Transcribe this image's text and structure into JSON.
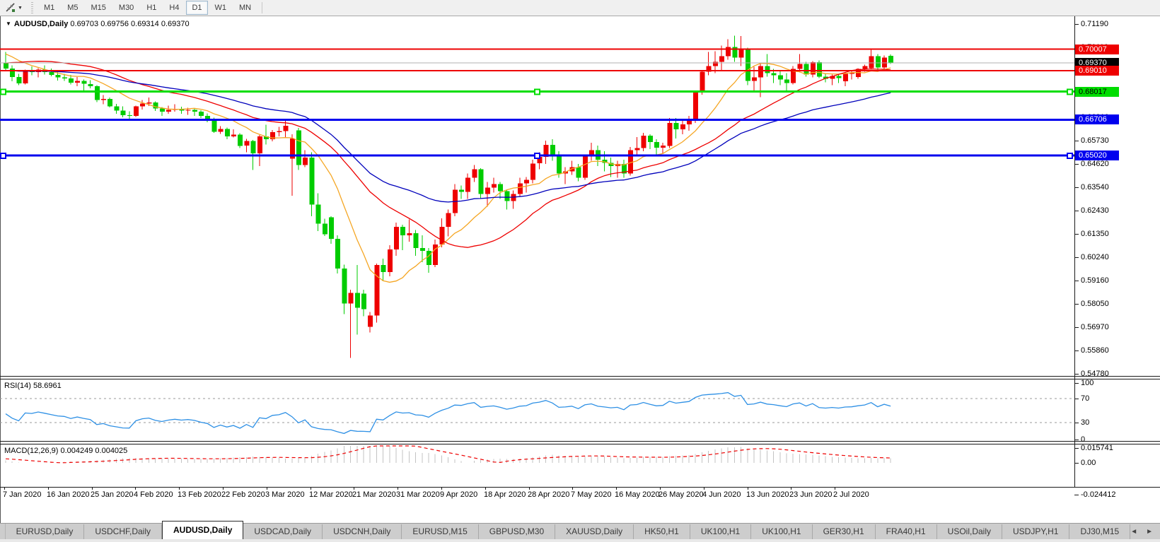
{
  "toolbar": {
    "chart_tool_icon": "crosshair-tool-icon",
    "dropdown_caret": "▼",
    "timeframes": [
      "M1",
      "M5",
      "M15",
      "M30",
      "H1",
      "H4",
      "D1",
      "W1",
      "MN"
    ],
    "active_timeframe": "D1"
  },
  "chart_window": {
    "title_caret": "▼",
    "title": "AUDUSD,Daily",
    "ohlc_text": "0.69703 0.69756 0.69314 0.69370",
    "price_axis_ticks": [
      "0.71190",
      "0.70110",
      "0.69030",
      "0.67920",
      "0.66810",
      "0.65730",
      "0.64620",
      "0.63540",
      "0.62430",
      "0.61350",
      "0.60240",
      "0.59160",
      "0.58050",
      "0.56970",
      "0.55860",
      "0.54780"
    ],
    "price_badges": [
      {
        "text": "0.70007",
        "price": 0.70007,
        "bg": "#ee0000",
        "fg": "#ffffff"
      },
      {
        "text": "0.69370",
        "price": 0.6937,
        "bg": "#000000",
        "fg": "#ffffff"
      },
      {
        "text": "0.69010",
        "price": 0.6901,
        "bg": "#ee0000",
        "fg": "#ffffff"
      },
      {
        "text": "0.68017",
        "price": 0.68017,
        "bg": "#00dd00",
        "fg": "#000000"
      },
      {
        "text": "0.66706",
        "price": 0.66706,
        "bg": "#0000ee",
        "fg": "#ffffff"
      },
      {
        "text": "0.65020",
        "price": 0.6502,
        "bg": "#0000ee",
        "fg": "#ffffff"
      }
    ]
  },
  "chart_data": {
    "type": "candlestick",
    "symbol": "AUDUSD",
    "timeframe": "Daily",
    "current_bar": {
      "open": 0.69703,
      "high": 0.69756,
      "low": 0.69314,
      "close": 0.6937
    },
    "price_axis": {
      "max": 0.7119,
      "min": 0.5478
    },
    "bull_color": "#ee0000",
    "bear_color": "#00cc00",
    "bid_line": {
      "price": 0.6937,
      "color": "#b0b0b0"
    },
    "hlines": [
      {
        "price": 0.70007,
        "color": "#ee0000",
        "w": 2,
        "selected": false
      },
      {
        "price": 0.6901,
        "color": "#ee0000",
        "w": 2,
        "selected": false
      },
      {
        "price": 0.68017,
        "color": "#00dd00",
        "w": 3,
        "selected": true
      },
      {
        "price": 0.66706,
        "color": "#0000ee",
        "w": 3,
        "selected": false
      },
      {
        "price": 0.6502,
        "color": "#0000ee",
        "w": 3,
        "selected": true
      }
    ],
    "moving_averages": [
      {
        "period": 10,
        "method": "sma",
        "color": "#f5a623"
      },
      {
        "period": 25,
        "method": "sma",
        "color": "#ee0000"
      },
      {
        "period": 45,
        "method": "ema",
        "color": "#0000bb"
      }
    ],
    "pre_closes": [
      6740,
      6755,
      6770,
      6748,
      6732,
      6760,
      6775,
      6790,
      6784,
      6800,
      6812,
      6796,
      6780,
      6770,
      6755,
      6745,
      6762,
      6840,
      6852,
      6860,
      6885,
      6892,
      6900,
      6895,
      6880,
      6866,
      6852,
      6856,
      6870,
      6882,
      6846,
      6832,
      6820,
      6812,
      6800,
      6792,
      6806,
      6820,
      6836,
      6850,
      6880,
      6900,
      6920,
      6936,
      6950,
      6962,
      6946,
      6930,
      6940,
      6956,
      6980,
      7000,
      7012,
      7021,
      7006,
      6996,
      6986,
      6962,
      6950,
      6940
    ],
    "candles": [
      [
        6935,
        6988,
        6902,
        6910
      ],
      [
        6910,
        6925,
        6850,
        6870
      ],
      [
        6870,
        6885,
        6832,
        6840
      ],
      [
        6840,
        6905,
        6836,
        6898
      ],
      [
        6898,
        6920,
        6878,
        6893
      ],
      [
        6893,
        6912,
        6868,
        6905
      ],
      [
        6905,
        6925,
        6882,
        6893
      ],
      [
        6893,
        6910,
        6873,
        6880
      ],
      [
        6880,
        6900,
        6854,
        6868
      ],
      [
        6868,
        6886,
        6852,
        6863
      ],
      [
        6863,
        6880,
        6836,
        6843
      ],
      [
        6843,
        6870,
        6828,
        6852
      ],
      [
        6852,
        6858,
        6808,
        6838
      ],
      [
        6838,
        6855,
        6818,
        6827
      ],
      [
        6827,
        6833,
        6753,
        6762
      ],
      [
        6762,
        6785,
        6742,
        6768
      ],
      [
        6768,
        6774,
        6728,
        6733
      ],
      [
        6733,
        6745,
        6698,
        6713
      ],
      [
        6713,
        6733,
        6682,
        6691
      ],
      [
        6691,
        6710,
        6668,
        6688
      ],
      [
        6688,
        6736,
        6683,
        6732
      ],
      [
        6732,
        6762,
        6718,
        6746
      ],
      [
        6746,
        6775,
        6734,
        6751
      ],
      [
        6751,
        6756,
        6712,
        6723
      ],
      [
        6723,
        6730,
        6688,
        6708
      ],
      [
        6708,
        6736,
        6698,
        6717
      ],
      [
        6717,
        6742,
        6708,
        6722
      ],
      [
        6722,
        6731,
        6698,
        6713
      ],
      [
        6713,
        6726,
        6693,
        6716
      ],
      [
        6716,
        6721,
        6688,
        6708
      ],
      [
        6708,
        6714,
        6678,
        6688
      ],
      [
        6688,
        6700,
        6658,
        6673
      ],
      [
        6673,
        6679,
        6608,
        6613
      ],
      [
        6613,
        6640,
        6603,
        6626
      ],
      [
        6626,
        6634,
        6578,
        6592
      ],
      [
        6592,
        6625,
        6587,
        6601
      ],
      [
        6601,
        6606,
        6538,
        6548
      ],
      [
        6548,
        6580,
        6518,
        6571
      ],
      [
        6571,
        6576,
        6434,
        6512
      ],
      [
        6512,
        6598,
        6452,
        6592
      ],
      [
        6592,
        6646,
        6553,
        6578
      ],
      [
        6578,
        6622,
        6568,
        6611
      ],
      [
        6611,
        6636,
        6592,
        6617
      ],
      [
        6617,
        6672,
        6588,
        6641
      ],
      [
        6488,
        6602,
        6313,
        6582
      ],
      [
        6620,
        6632,
        6435,
        6458
      ],
      [
        6458,
        6528,
        6448,
        6492
      ],
      [
        6492,
        6518,
        6218,
        6272
      ],
      [
        6272,
        6325,
        6148,
        6182
      ],
      [
        6182,
        6205,
        6125,
        6132
      ],
      [
        6212,
        6218,
        6088,
        6112
      ],
      [
        6112,
        6128,
        5948,
        5972
      ],
      [
        5972,
        5990,
        5758,
        5808
      ],
      [
        5808,
        5872,
        5552,
        5858
      ],
      [
        5858,
        5988,
        5662,
        5788
      ],
      [
        5855,
        5872,
        5748,
        5782
      ],
      [
        5698,
        5768,
        5672,
        5752
      ],
      [
        5752,
        5995,
        5718,
        5988
      ],
      [
        5988,
        6018,
        5912,
        5955
      ],
      [
        5955,
        6082,
        5935,
        6062
      ],
      [
        6062,
        6188,
        6032,
        6168
      ],
      [
        6168,
        6178,
        6058,
        6128
      ],
      [
        6128,
        6202,
        6098,
        6138
      ],
      [
        6138,
        6152,
        6032,
        6068
      ],
      [
        6068,
        6128,
        6002,
        6055
      ],
      [
        6055,
        6068,
        5952,
        5988
      ],
      [
        5988,
        6108,
        5978,
        6085
      ],
      [
        6085,
        6208,
        6072,
        6168
      ],
      [
        6168,
        6248,
        6122,
        6232
      ],
      [
        6232,
        6368,
        6218,
        6342
      ],
      [
        6342,
        6362,
        6298,
        6332
      ],
      [
        6332,
        6418,
        6298,
        6398
      ],
      [
        6398,
        6458,
        6378,
        6438
      ],
      [
        6438,
        6442,
        6298,
        6322
      ],
      [
        6322,
        6378,
        6262,
        6352
      ],
      [
        6352,
        6398,
        6328,
        6368
      ],
      [
        6368,
        6378,
        6298,
        6335
      ],
      [
        6335,
        6342,
        6248,
        6288
      ],
      [
        6288,
        6338,
        6252,
        6322
      ],
      [
        6322,
        6398,
        6308,
        6372
      ],
      [
        6372,
        6402,
        6328,
        6388
      ],
      [
        6388,
        6482,
        6372,
        6465
      ],
      [
        6465,
        6518,
        6438,
        6495
      ],
      [
        6495,
        6572,
        6462,
        6552
      ],
      [
        6552,
        6578,
        6478,
        6508
      ],
      [
        6508,
        6522,
        6398,
        6418
      ],
      [
        6418,
        6448,
        6368,
        6428
      ],
      [
        6428,
        6478,
        6412,
        6448
      ],
      [
        6448,
        6462,
        6382,
        6398
      ],
      [
        6398,
        6508,
        6388,
        6498
      ],
      [
        6498,
        6562,
        6478,
        6528
      ],
      [
        6528,
        6548,
        6452,
        6482
      ],
      [
        6482,
        6522,
        6428,
        6468
      ],
      [
        6468,
        6492,
        6402,
        6452
      ],
      [
        6452,
        6478,
        6398,
        6462
      ],
      [
        6462,
        6482,
        6398,
        6418
      ],
      [
        6418,
        6542,
        6408,
        6528
      ],
      [
        6528,
        6588,
        6508,
        6538
      ],
      [
        6538,
        6608,
        6522,
        6595
      ],
      [
        6595,
        6602,
        6532,
        6565
      ],
      [
        6565,
        6578,
        6502,
        6538
      ],
      [
        6538,
        6562,
        6512,
        6548
      ],
      [
        6548,
        6678,
        6538,
        6655
      ],
      [
        6655,
        6678,
        6582,
        6625
      ],
      [
        6625,
        6668,
        6602,
        6648
      ],
      [
        6648,
        6688,
        6618,
        6668
      ],
      [
        6668,
        6808,
        6655,
        6798
      ],
      [
        6798,
        6902,
        6788,
        6895
      ],
      [
        6895,
        6988,
        6878,
        6922
      ],
      [
        6922,
        6992,
        6888,
        6942
      ],
      [
        6942,
        7018,
        6902,
        6968
      ],
      [
        6968,
        7048,
        6952,
        7012
      ],
      [
        7012,
        7065,
        6942,
        6962
      ],
      [
        6962,
        7062,
        6922,
        7002
      ],
      [
        7002,
        7008,
        6832,
        6852
      ],
      [
        6852,
        6918,
        6802,
        6868
      ],
      [
        6868,
        6938,
        6776,
        6922
      ],
      [
        6922,
        6978,
        6872,
        6888
      ],
      [
        6888,
        6908,
        6842,
        6878
      ],
      [
        6878,
        6898,
        6832,
        6858
      ],
      [
        6858,
        6888,
        6802,
        6842
      ],
      [
        6842,
        6922,
        6836,
        6908
      ],
      [
        6908,
        6978,
        6892,
        6932
      ],
      [
        6932,
        6942,
        6872,
        6882
      ],
      [
        6882,
        6945,
        6868,
        6940
      ],
      [
        6940,
        6948,
        6865,
        6872
      ],
      [
        6872,
        6888,
        6846,
        6862
      ],
      [
        6862,
        6882,
        6832,
        6876
      ],
      [
        6876,
        6884,
        6842,
        6866
      ],
      [
        6850,
        6892,
        6828,
        6886
      ],
      [
        6886,
        6898,
        6858,
        6890
      ],
      [
        6870,
        6912,
        6862,
        6908
      ],
      [
        6908,
        6928,
        6896,
        6922
      ],
      [
        6912,
        6998,
        6906,
        6968
      ],
      [
        6968,
        6978,
        6902,
        6915
      ],
      [
        6915,
        6972,
        6908,
        6962
      ],
      [
        6970,
        6976,
        6931,
        6937
      ]
    ],
    "date_labels": [
      "7 Jan 2020",
      "16 Jan 2020",
      "25 Jan 2020",
      "4 Feb 2020",
      "13 Feb 2020",
      "22 Feb 2020",
      "3 Mar 2020",
      "12 Mar 2020",
      "21 Mar 2020",
      "31 Mar 2020",
      "9 Apr 2020",
      "18 Apr 2020",
      "28 Apr 2020",
      "7 May 2020",
      "16 May 2020",
      "26 May 2020",
      "4 Jun 2020",
      "13 Jun 2020",
      "23 Jun 2020",
      "2 Jul 2020"
    ]
  },
  "rsi": {
    "label": "RSI(14) 58.6961",
    "period": 14,
    "current": 58.6961,
    "color": "#2e90e5",
    "levels": [
      70,
      30
    ],
    "axis_labels": [
      "100",
      "70",
      "30",
      "0"
    ],
    "max": 100,
    "min": 0
  },
  "macd": {
    "label": "MACD(12,26,9) 0.004249 0.004025",
    "fast": 12,
    "slow": 26,
    "signal": 9,
    "current_macd": 0.004249,
    "current_signal": 0.004025,
    "hist_color": "#c3c3c3",
    "signal_color": "#ee0000",
    "axis_max_label": "0.015741",
    "axis_zero_label": "0.00",
    "axis_min_label": "-0.024412",
    "max": 0.015741,
    "min": -0.024412
  },
  "tabs": {
    "items": [
      "EURUSD,Daily",
      "USDCHF,Daily",
      "AUDUSD,Daily",
      "USDCAD,Daily",
      "USDCNH,Daily",
      "EURUSD,M15",
      "GBPUSD,M30",
      "XAUUSD,Daily",
      "HK50,H1",
      "UK100,H1",
      "UK100,H1",
      "GER30,H1",
      "FRA40,H1",
      "USOil,Daily",
      "USDJPY,H1",
      "DJ30,M15"
    ],
    "active_index": 2,
    "scroll_left": "◄",
    "scroll_right": "►"
  }
}
